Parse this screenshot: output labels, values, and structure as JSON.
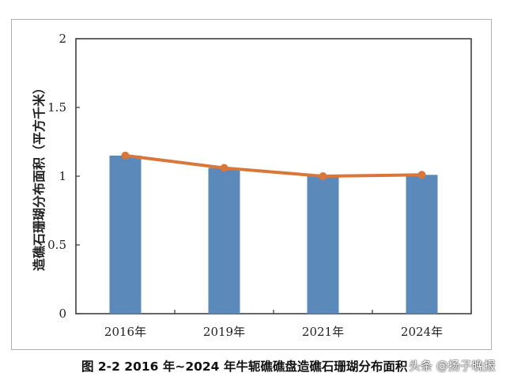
{
  "chart_data": {
    "type": "bar",
    "categories": [
      "2016年",
      "2019年",
      "2021年",
      "2024年"
    ],
    "series": [
      {
        "kind": "bar",
        "values": [
          1.15,
          1.06,
          1.0,
          1.01
        ],
        "color": "#5b89b9"
      },
      {
        "kind": "line",
        "values": [
          1.15,
          1.06,
          1.0,
          1.01
        ],
        "color": "#d9773b"
      }
    ],
    "ylabel": "造礁石珊瑚分布面积（平方千米）",
    "yticks": [
      "0",
      "0.5",
      "1",
      "1.5",
      "2"
    ],
    "ylim": [
      0,
      2
    ],
    "grid": false,
    "legend": "none"
  },
  "caption": "图 2-2 2016 年~2024 年牛轭礁礁盘造礁石珊瑚分布面积",
  "watermark": "头条 @扬子晚报"
}
